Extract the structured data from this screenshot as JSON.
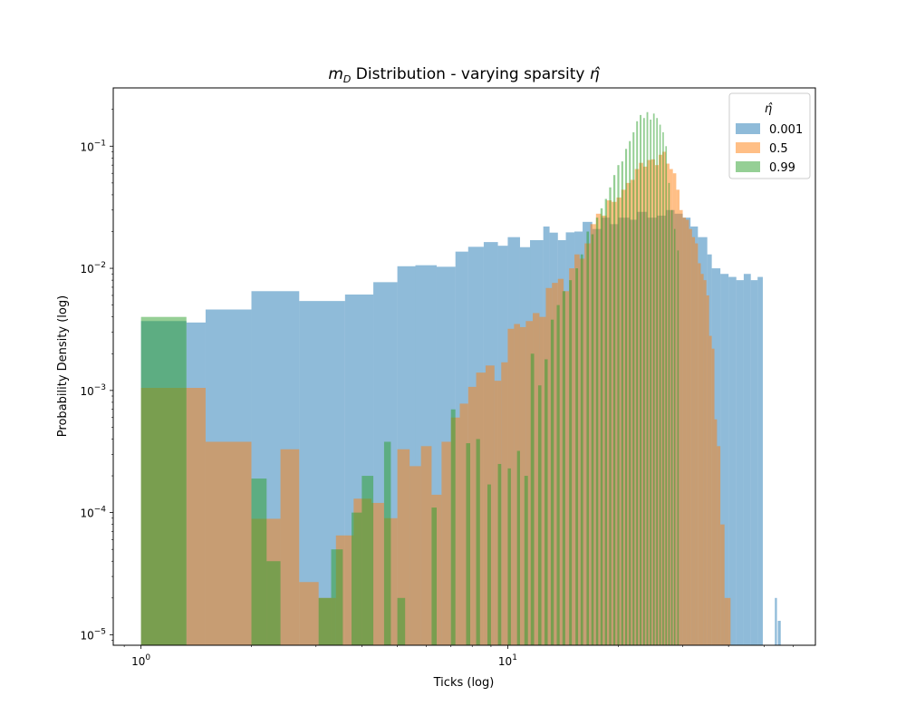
{
  "chart_data": {
    "type": "histogram",
    "title_main": "m",
    "title_sub": "D",
    "title_rest": " Distribution - varying sparsity ",
    "title_symbol": "η̂",
    "xlabel": "Ticks (log)",
    "ylabel": "Probability Density (log)",
    "xscale": "log",
    "yscale": "log",
    "xlim": [
      0.84,
      69
    ],
    "ylim": [
      8.2e-06,
      0.3
    ],
    "x_ticks": [
      {
        "value": 1,
        "base": "10",
        "exp": "0"
      },
      {
        "value": 10,
        "base": "10",
        "exp": "1"
      }
    ],
    "y_ticks": [
      {
        "value": 1e-05,
        "base": "10",
        "exp": "−5"
      },
      {
        "value": 0.0001,
        "base": "10",
        "exp": "−4"
      },
      {
        "value": 0.001,
        "base": "10",
        "exp": "−3"
      },
      {
        "value": 0.01,
        "base": "10",
        "exp": "−2"
      },
      {
        "value": 0.1,
        "base": "10",
        "exp": "−1"
      }
    ],
    "legend": {
      "title": "η̂",
      "position": "upper right",
      "entries": [
        {
          "label": "0.001",
          "color": "#1f77b4"
        },
        {
          "label": "0.5",
          "color": "#ff7f0e"
        },
        {
          "label": "0.99",
          "color": "#2ca02c"
        }
      ]
    },
    "alpha": 0.5,
    "series": [
      {
        "name": "0.001",
        "color": "#1f77b4",
        "bins": [
          [
            1.0,
            1.33,
            0.0037
          ],
          [
            1.33,
            1.5,
            0.0036
          ],
          [
            1.5,
            2.0,
            0.0046
          ],
          [
            2.0,
            2.7,
            0.0065
          ],
          [
            2.7,
            3.6,
            0.0054
          ],
          [
            3.6,
            4.3,
            0.0061
          ],
          [
            4.3,
            5.0,
            0.0077
          ],
          [
            5.0,
            5.6,
            0.0104
          ],
          [
            5.6,
            6.4,
            0.0106
          ],
          [
            6.4,
            7.2,
            0.0103
          ],
          [
            7.2,
            7.8,
            0.0137
          ],
          [
            7.8,
            8.6,
            0.015
          ],
          [
            8.6,
            9.4,
            0.0164
          ],
          [
            9.4,
            10.0,
            0.0153
          ],
          [
            10.0,
            10.8,
            0.018
          ],
          [
            10.8,
            11.5,
            0.0149
          ],
          [
            11.5,
            12.5,
            0.017
          ],
          [
            12.5,
            13.0,
            0.022
          ],
          [
            13.0,
            13.7,
            0.0196
          ],
          [
            13.7,
            14.4,
            0.017
          ],
          [
            14.4,
            15.2,
            0.0197
          ],
          [
            15.2,
            16.0,
            0.02
          ],
          [
            16.0,
            17.0,
            0.024
          ],
          [
            17.0,
            18.0,
            0.021
          ],
          [
            18.0,
            19.0,
            0.026
          ],
          [
            19.0,
            20.0,
            0.023
          ],
          [
            20.0,
            21.5,
            0.026
          ],
          [
            21.5,
            22.5,
            0.025
          ],
          [
            22.5,
            24.0,
            0.029
          ],
          [
            24.0,
            25.5,
            0.026
          ],
          [
            25.5,
            27.0,
            0.027
          ],
          [
            27.0,
            28.5,
            0.03
          ],
          [
            28.5,
            30.0,
            0.028
          ],
          [
            30.0,
            31.5,
            0.026
          ],
          [
            31.5,
            33.0,
            0.022
          ],
          [
            33.0,
            35.0,
            0.018
          ],
          [
            35.0,
            36.0,
            0.013
          ],
          [
            36.0,
            38.0,
            0.01
          ],
          [
            38.0,
            40.0,
            0.009
          ],
          [
            40.0,
            42.0,
            0.0085
          ],
          [
            42.0,
            44.0,
            0.008
          ],
          [
            44.0,
            46.0,
            0.009
          ],
          [
            46.0,
            48.0,
            0.008
          ],
          [
            48.0,
            49.6,
            0.0085
          ],
          [
            53.5,
            54.2,
            2e-05
          ],
          [
            54.5,
            55.5,
            1.3e-05
          ]
        ]
      },
      {
        "name": "0.5",
        "color": "#ff7f0e",
        "bins": [
          [
            1.0,
            1.33,
            0.00105
          ],
          [
            1.33,
            1.5,
            0.00105
          ],
          [
            1.5,
            2.0,
            0.00038
          ],
          [
            2.0,
            2.4,
            8.9e-05
          ],
          [
            2.4,
            2.7,
            0.00033
          ],
          [
            2.7,
            3.05,
            2.7e-05
          ],
          [
            3.05,
            3.4,
            2e-05
          ],
          [
            3.4,
            3.8,
            6.5e-05
          ],
          [
            3.8,
            4.25,
            0.00013
          ],
          [
            4.25,
            4.6,
            0.00012
          ],
          [
            4.6,
            5.0,
            9e-05
          ],
          [
            5.0,
            5.4,
            0.00033
          ],
          [
            5.4,
            5.8,
            0.00024
          ],
          [
            5.8,
            6.2,
            0.00035
          ],
          [
            6.2,
            6.6,
            0.00014
          ],
          [
            6.6,
            7.0,
            0.00038
          ],
          [
            7.0,
            7.4,
            0.0006
          ],
          [
            7.4,
            7.8,
            0.00078
          ],
          [
            7.8,
            8.2,
            0.00107
          ],
          [
            8.2,
            8.7,
            0.0014
          ],
          [
            8.7,
            9.2,
            0.0016
          ],
          [
            9.2,
            9.6,
            0.0012
          ],
          [
            9.6,
            10.0,
            0.0017
          ],
          [
            10.0,
            10.4,
            0.0032
          ],
          [
            10.4,
            10.8,
            0.0035
          ],
          [
            10.8,
            11.2,
            0.0033
          ],
          [
            11.2,
            11.7,
            0.0037
          ],
          [
            11.7,
            12.2,
            0.0043
          ],
          [
            12.2,
            12.7,
            0.004
          ],
          [
            12.7,
            13.2,
            0.0069
          ],
          [
            13.2,
            13.7,
            0.0076
          ],
          [
            13.7,
            14.2,
            0.0082
          ],
          [
            14.2,
            14.7,
            0.0065
          ],
          [
            14.7,
            15.2,
            0.01
          ],
          [
            15.2,
            15.7,
            0.013
          ],
          [
            15.7,
            16.2,
            0.012
          ],
          [
            16.2,
            16.8,
            0.016
          ],
          [
            16.8,
            17.4,
            0.023
          ],
          [
            17.4,
            18.0,
            0.028
          ],
          [
            18.0,
            18.6,
            0.027
          ],
          [
            18.6,
            19.2,
            0.036
          ],
          [
            19.2,
            19.8,
            0.035
          ],
          [
            19.8,
            20.4,
            0.038
          ],
          [
            20.4,
            21.0,
            0.044
          ],
          [
            21.0,
            21.6,
            0.05
          ],
          [
            21.6,
            22.2,
            0.053
          ],
          [
            22.2,
            22.8,
            0.065
          ],
          [
            22.8,
            23.4,
            0.073
          ],
          [
            23.4,
            24.0,
            0.068
          ],
          [
            24.0,
            24.6,
            0.077
          ],
          [
            24.6,
            25.2,
            0.078
          ],
          [
            25.2,
            25.8,
            0.07
          ],
          [
            25.8,
            26.4,
            0.085
          ],
          [
            26.4,
            27.0,
            0.09
          ],
          [
            27.0,
            27.6,
            0.072
          ],
          [
            27.6,
            28.2,
            0.065
          ],
          [
            28.2,
            28.8,
            0.06
          ],
          [
            28.8,
            29.4,
            0.044
          ],
          [
            29.4,
            30.0,
            0.03
          ],
          [
            30.0,
            30.6,
            0.026
          ],
          [
            30.6,
            31.2,
            0.025
          ],
          [
            31.2,
            31.8,
            0.021
          ],
          [
            31.8,
            32.4,
            0.018
          ],
          [
            32.4,
            33.0,
            0.016
          ],
          [
            33.0,
            33.6,
            0.011
          ],
          [
            33.6,
            34.2,
            0.009
          ],
          [
            34.2,
            34.8,
            0.008
          ],
          [
            34.8,
            35.4,
            0.006
          ],
          [
            35.4,
            36.0,
            0.0028
          ],
          [
            36.0,
            36.6,
            0.0022
          ],
          [
            36.6,
            37.2,
            0.00058
          ],
          [
            37.2,
            38.0,
            0.00035
          ],
          [
            38.0,
            39.0,
            8e-05
          ],
          [
            39.0,
            40.5,
            2e-05
          ]
        ]
      },
      {
        "name": "0.99",
        "color": "#2ca02c",
        "bins": [
          [
            1.0,
            1.33,
            0.004
          ],
          [
            2.0,
            2.2,
            0.00019
          ],
          [
            2.2,
            2.4,
            4e-05
          ],
          [
            3.05,
            3.3,
            2e-05
          ],
          [
            3.3,
            3.55,
            5e-05
          ],
          [
            3.75,
            4.0,
            0.0001
          ],
          [
            4.0,
            4.3,
            0.0002
          ],
          [
            4.6,
            4.8,
            0.00038
          ],
          [
            5.0,
            5.25,
            2e-05
          ],
          [
            6.2,
            6.4,
            0.00011
          ],
          [
            7.0,
            7.2,
            0.0007
          ],
          [
            7.7,
            7.9,
            0.00037
          ],
          [
            8.2,
            8.4,
            0.0004
          ],
          [
            8.8,
            9.0,
            0.00017
          ],
          [
            9.4,
            9.6,
            0.00025
          ],
          [
            10.0,
            10.2,
            0.00023
          ],
          [
            10.6,
            10.8,
            0.00032
          ],
          [
            11.1,
            11.35,
            0.0002
          ],
          [
            11.55,
            11.8,
            0.002
          ],
          [
            12.1,
            12.35,
            0.0011
          ],
          [
            12.6,
            12.85,
            0.0018
          ],
          [
            13.1,
            13.35,
            0.0038
          ],
          [
            13.6,
            13.85,
            0.005
          ],
          [
            14.1,
            14.35,
            0.0065
          ],
          [
            14.7,
            14.95,
            0.008
          ],
          [
            15.3,
            15.55,
            0.01
          ],
          [
            15.8,
            16.05,
            0.013
          ],
          [
            16.4,
            16.65,
            0.02
          ],
          [
            16.9,
            17.15,
            0.019
          ],
          [
            17.4,
            17.65,
            0.026
          ],
          [
            17.9,
            18.15,
            0.031
          ],
          [
            18.4,
            18.65,
            0.037
          ],
          [
            18.9,
            19.15,
            0.046
          ],
          [
            19.4,
            19.65,
            0.058
          ],
          [
            19.9,
            20.15,
            0.07
          ],
          [
            20.4,
            20.65,
            0.075
          ],
          [
            20.9,
            21.15,
            0.095
          ],
          [
            21.4,
            21.65,
            0.11
          ],
          [
            21.9,
            22.15,
            0.13
          ],
          [
            22.4,
            22.65,
            0.16
          ],
          [
            22.9,
            23.15,
            0.18
          ],
          [
            23.4,
            23.65,
            0.17
          ],
          [
            23.9,
            24.15,
            0.19
          ],
          [
            24.4,
            24.65,
            0.165
          ],
          [
            24.9,
            25.15,
            0.185
          ],
          [
            25.4,
            25.65,
            0.17
          ],
          [
            25.9,
            26.15,
            0.15
          ],
          [
            26.4,
            26.65,
            0.13
          ],
          [
            26.9,
            27.15,
            0.1
          ],
          [
            27.4,
            27.65,
            0.05
          ],
          [
            27.9,
            28.15,
            0.03
          ],
          [
            28.4,
            28.65,
            0.021
          ],
          [
            29.0,
            29.25,
            0.014
          ]
        ]
      }
    ]
  }
}
